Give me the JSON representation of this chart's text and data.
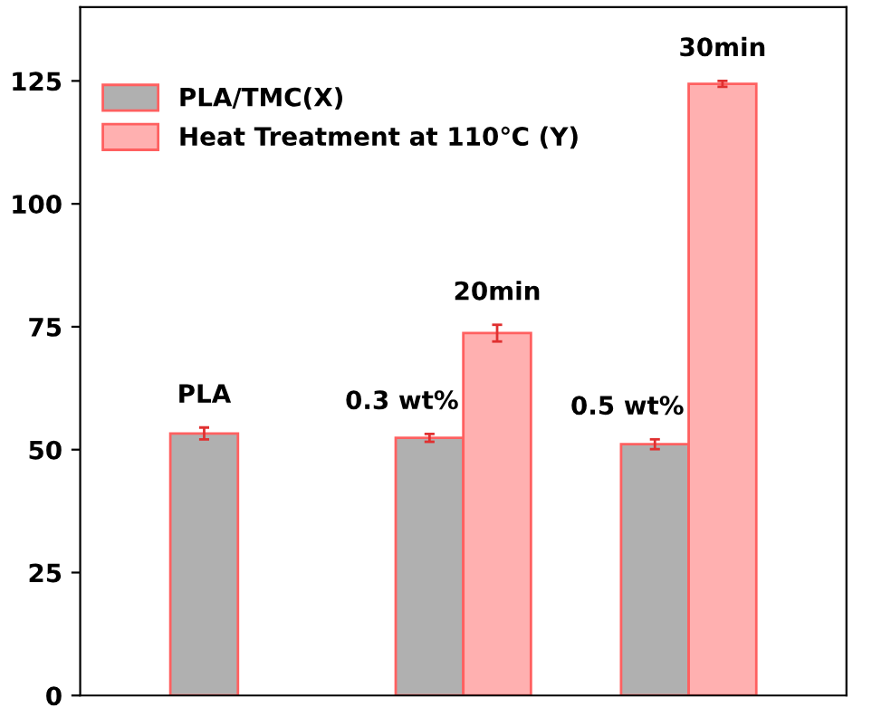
{
  "chart_data": {
    "type": "bar",
    "categories": [
      null,
      null,
      null
    ],
    "series": [
      {
        "name": "PLA/TMC(X)",
        "color": "#b0b0b0",
        "values": [
          53.3,
          52.4,
          51.1
        ],
        "errors": [
          1.2,
          0.8,
          1.0
        ]
      },
      {
        "name": "Heat Treatment at 110℃ (Y)",
        "color": "#ffb0b0",
        "values": [
          null,
          73.7,
          124.4
        ],
        "errors": [
          null,
          1.7,
          0.6
        ]
      }
    ],
    "annotations": [
      "PLA",
      "0.3 wt%",
      "0.5 wt%",
      "20min",
      "30min"
    ],
    "ylim": [
      0,
      140
    ],
    "yticks": [
      0,
      25,
      50,
      75,
      100,
      125
    ],
    "legend": "top left",
    "grid": false
  }
}
